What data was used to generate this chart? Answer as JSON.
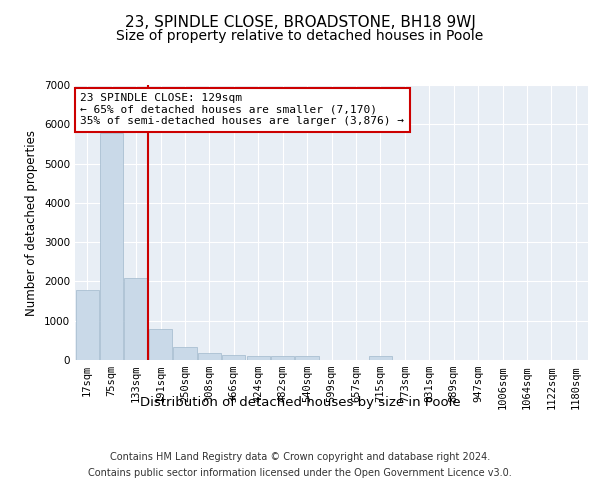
{
  "title": "23, SPINDLE CLOSE, BROADSTONE, BH18 9WJ",
  "subtitle": "Size of property relative to detached houses in Poole",
  "xlabel": "Distribution of detached houses by size in Poole",
  "ylabel": "Number of detached properties",
  "bar_labels": [
    "17sqm",
    "75sqm",
    "133sqm",
    "191sqm",
    "250sqm",
    "308sqm",
    "366sqm",
    "424sqm",
    "482sqm",
    "540sqm",
    "599sqm",
    "657sqm",
    "715sqm",
    "773sqm",
    "831sqm",
    "889sqm",
    "947sqm",
    "1006sqm",
    "1064sqm",
    "1122sqm",
    "1180sqm"
  ],
  "bar_values": [
    1780,
    5780,
    2080,
    800,
    340,
    190,
    120,
    105,
    100,
    90,
    0,
    0,
    100,
    0,
    0,
    0,
    0,
    0,
    0,
    0,
    0
  ],
  "bar_color": "#c9d9e8",
  "bar_edgecolor": "#a0b8cc",
  "vline_color": "#cc0000",
  "vline_x": 2.5,
  "annotation_line1": "23 SPINDLE CLOSE: 129sqm",
  "annotation_line2": "← 65% of detached houses are smaller (7,170)",
  "annotation_line3": "35% of semi-detached houses are larger (3,876) →",
  "annotation_box_color": "#cc0000",
  "ylim": [
    0,
    7000
  ],
  "yticks": [
    0,
    1000,
    2000,
    3000,
    4000,
    5000,
    6000,
    7000
  ],
  "footer_line1": "Contains HM Land Registry data © Crown copyright and database right 2024.",
  "footer_line2": "Contains public sector information licensed under the Open Government Licence v3.0.",
  "plot_bg_color": "#e8eef5",
  "grid_color": "#ffffff",
  "title_fontsize": 11,
  "subtitle_fontsize": 10,
  "tick_fontsize": 7.5,
  "ylabel_fontsize": 8.5,
  "xlabel_fontsize": 9.5,
  "footer_fontsize": 7,
  "annotation_fontsize": 8
}
